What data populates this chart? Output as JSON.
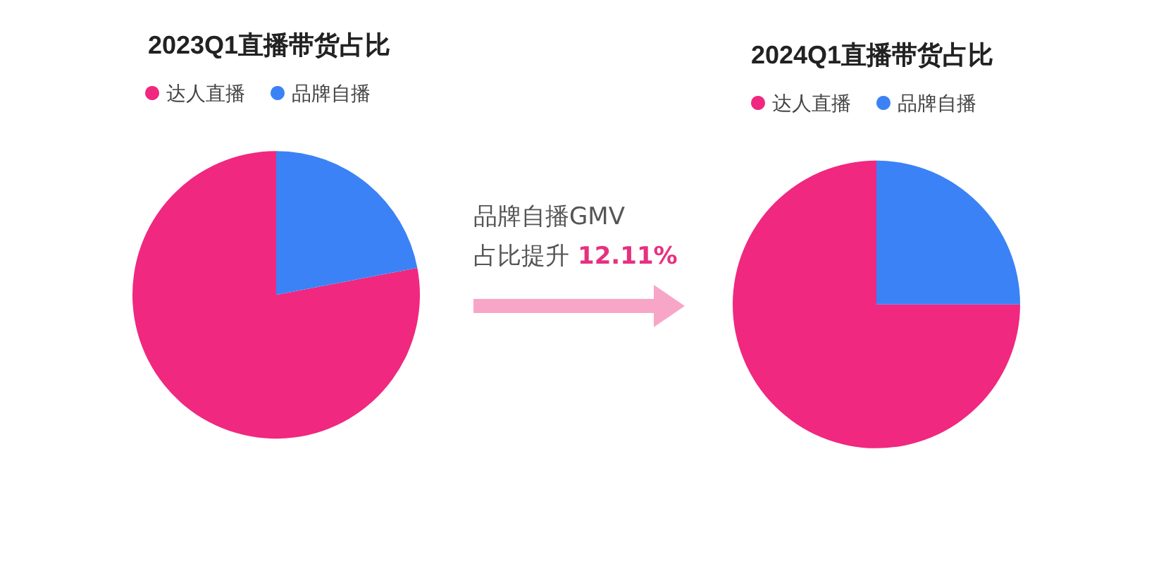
{
  "chart_data": [
    {
      "type": "pie",
      "title": "2023Q1直播带货占比",
      "categories": [
        "达人直播",
        "品牌自播"
      ],
      "values": [
        78,
        22
      ],
      "colors": [
        "#f0287f",
        "#3b82f6"
      ],
      "legend": "top",
      "annotations": [
        "品牌自播GMV",
        "占比提升",
        "12.11%"
      ]
    },
    {
      "type": "pie",
      "title": "2024Q1直播带货占比",
      "categories": [
        "达人直播",
        "品牌自播"
      ],
      "values": [
        75,
        25
      ],
      "colors": [
        "#f0287f",
        "#3b82f6"
      ],
      "legend": "top"
    }
  ]
}
